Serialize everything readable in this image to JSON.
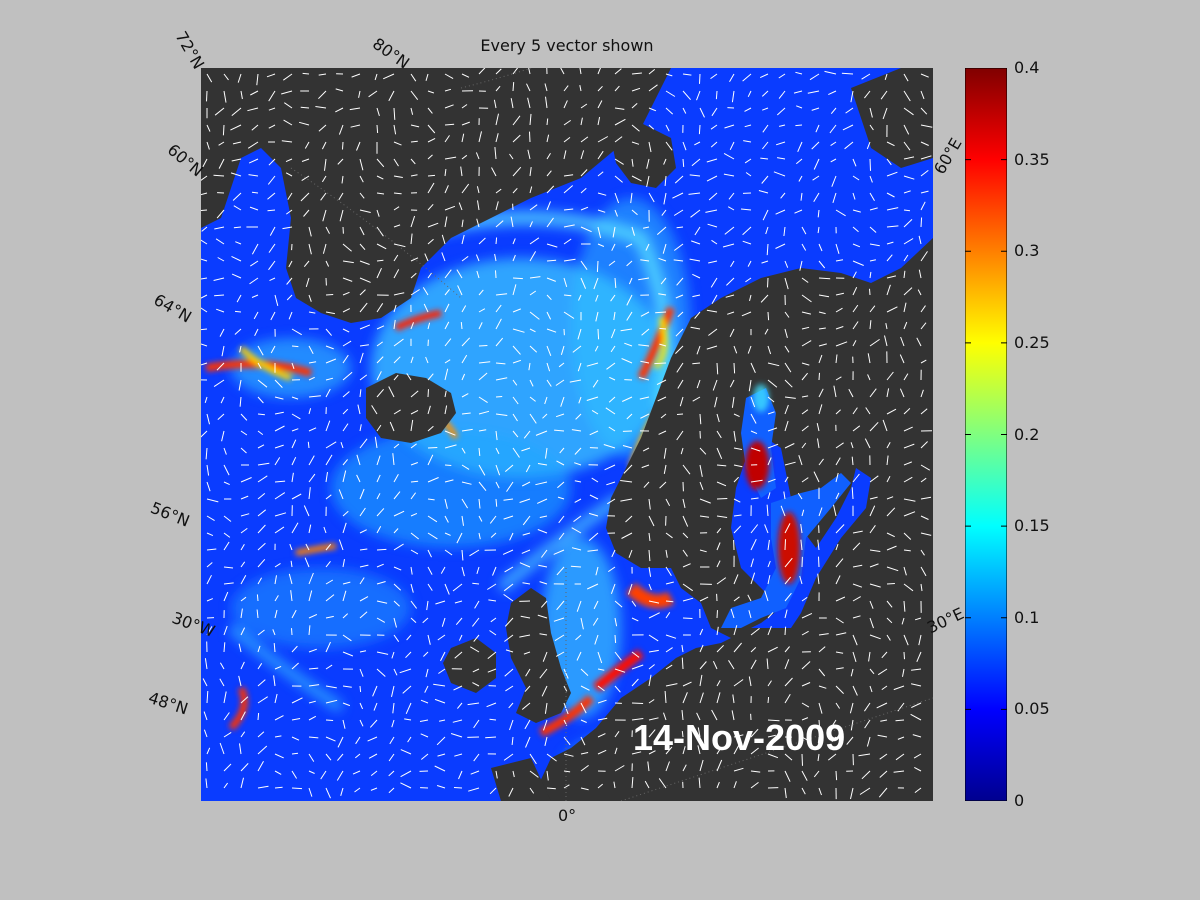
{
  "title": "Every 5 vector shown",
  "date": "14-Nov-2009",
  "colors": {
    "land": "#333333",
    "figure_background": "#c0c0c0",
    "ocean_low": "#0a36ff",
    "arrow": "#ffffff"
  },
  "geo_labels": {
    "lat_72n": "72°N",
    "lat_80n": "80°N",
    "lat_60n": "60°N",
    "lat_64n": "64°N",
    "lat_56n": "56°N",
    "lat_48n": "48°N",
    "lon_30w": "30°W",
    "lon_0": "0°",
    "lon_30e": "30°E",
    "lon_60e": "60°E"
  },
  "colorbar": {
    "colormap": "jet",
    "min": 0,
    "max": 0.4,
    "ticks": [
      "0.4",
      "0.35",
      "0.3",
      "0.25",
      "0.2",
      "0.15",
      "0.1",
      "0.05",
      "0"
    ]
  }
}
